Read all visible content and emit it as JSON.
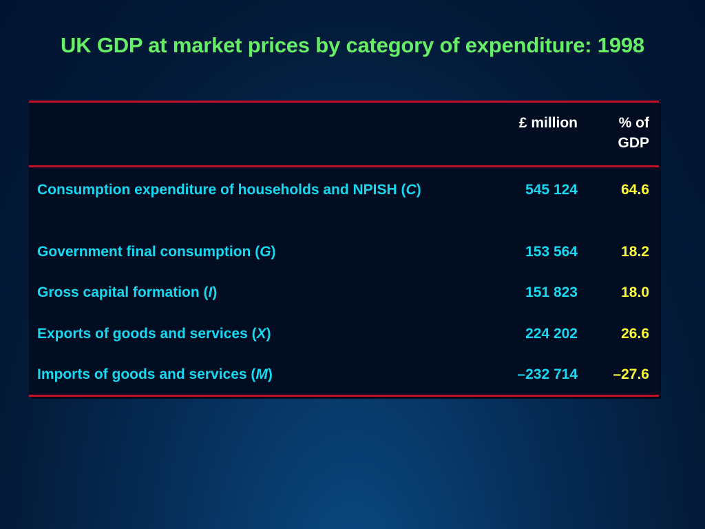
{
  "slide": {
    "title": "UK GDP at market prices by category of expenditure: 1998"
  },
  "colors": {
    "title": "#66ee66",
    "label": "#18d8f0",
    "percent": "#ffff33",
    "rule": "#c0102a",
    "table_bg": "#020d22"
  },
  "table": {
    "headers": {
      "money": "£ million",
      "pct_line1": "% of",
      "pct_line2": "GDP"
    },
    "rows": [
      {
        "label_pre": "Consumption expenditure of households and NPISH (",
        "label_var": "C",
        "label_post": ")",
        "money": "545 124",
        "pct": "64.6"
      },
      {
        "label_pre": "Government final consumption (",
        "label_var": "G",
        "label_post": ")",
        "money": "153 564",
        "pct": "18.2"
      },
      {
        "label_pre": "Gross capital formation (",
        "label_var": "I",
        "label_post": ")",
        "money": "151 823",
        "pct": "18.0"
      },
      {
        "label_pre": "Exports of goods and services (",
        "label_var": "X",
        "label_post": ")",
        "money": "224 202",
        "pct": "26.6"
      },
      {
        "label_pre": "Imports of goods and services (",
        "label_var": "M",
        "label_post": ")",
        "money": "–232 714",
        "pct": "–27.6"
      }
    ]
  }
}
